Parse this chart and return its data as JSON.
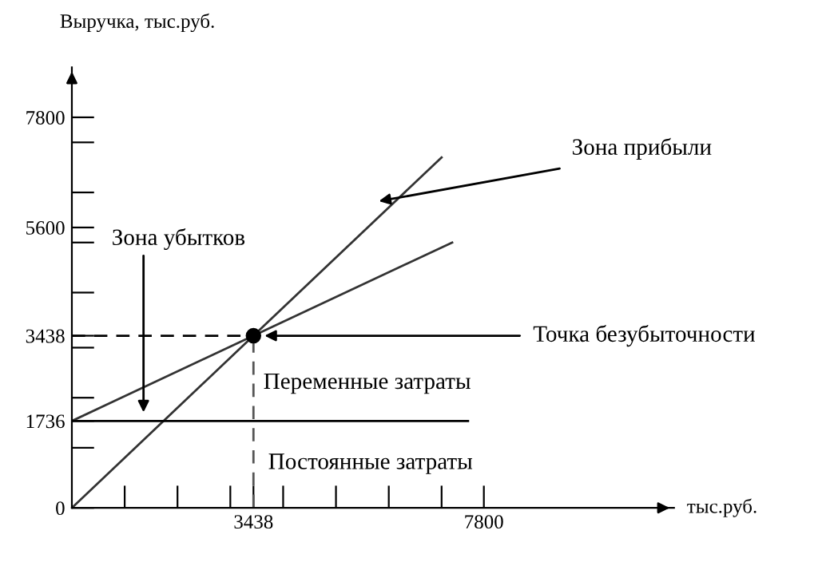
{
  "chart_data": {
    "type": "line",
    "xlabel": "тыс.руб.",
    "ylabel": "Выручка, тыс.руб.",
    "xlim": [
      0,
      11400
    ],
    "ylim": [
      0,
      8800
    ],
    "xticks": [
      {
        "value": 1000,
        "label": null
      },
      {
        "value": 2000,
        "label": null
      },
      {
        "value": 3000,
        "label": null
      },
      3438,
      {
        "value": 4000,
        "label": null
      },
      {
        "value": 5000,
        "label": null
      },
      {
        "value": 6000,
        "label": null
      },
      {
        "value": 7000,
        "label": null
      },
      7800
    ],
    "yticks": [
      0,
      {
        "value": 1200,
        "label": null
      },
      1736,
      {
        "value": 2200,
        "label": null
      },
      {
        "value": 3200,
        "label": null
      },
      3438,
      {
        "value": 4300,
        "label": null
      },
      {
        "value": 5300,
        "label": null
      },
      5600,
      {
        "value": 6300,
        "label": null
      },
      {
        "value": 7300,
        "label": null
      },
      7800
    ],
    "grid": false,
    "legend": false,
    "series": [
      {
        "type": "line",
        "color": "#333333",
        "line_style": "solid",
        "x": [
          0,
          3438,
          7000
        ],
        "values": [
          0,
          3438,
          7000
        ]
      },
      {
        "type": "line",
        "color": "#333333",
        "line_style": "solid",
        "x": [
          0,
          3438,
          7200
        ],
        "values": [
          1736,
          3438,
          5300
        ]
      },
      {
        "type": "line",
        "color": "#000000",
        "line_style": "solid",
        "x": [
          0,
          7500
        ],
        "values": [
          1736,
          1736
        ]
      },
      {
        "type": "line",
        "color": "#000000",
        "line_style": "dashed",
        "x": [
          0,
          3438
        ],
        "values": [
          3438,
          3438
        ]
      },
      {
        "type": "line",
        "color": "#555555",
        "line_style": "dashed",
        "x": [
          3438,
          3438
        ],
        "values": [
          0,
          3438
        ]
      },
      {
        "type": "scatter",
        "color": "#000000",
        "marker": "circle",
        "x": [
          3438
        ],
        "values": [
          3438
        ]
      }
    ],
    "annotations": [
      "Зона прибыли",
      "Зона убытков",
      {
        "text": "Точка безубыточности",
        "x": 3438,
        "y": 3438
      },
      "Переменные затраты",
      "Постоянные затраты"
    ]
  }
}
